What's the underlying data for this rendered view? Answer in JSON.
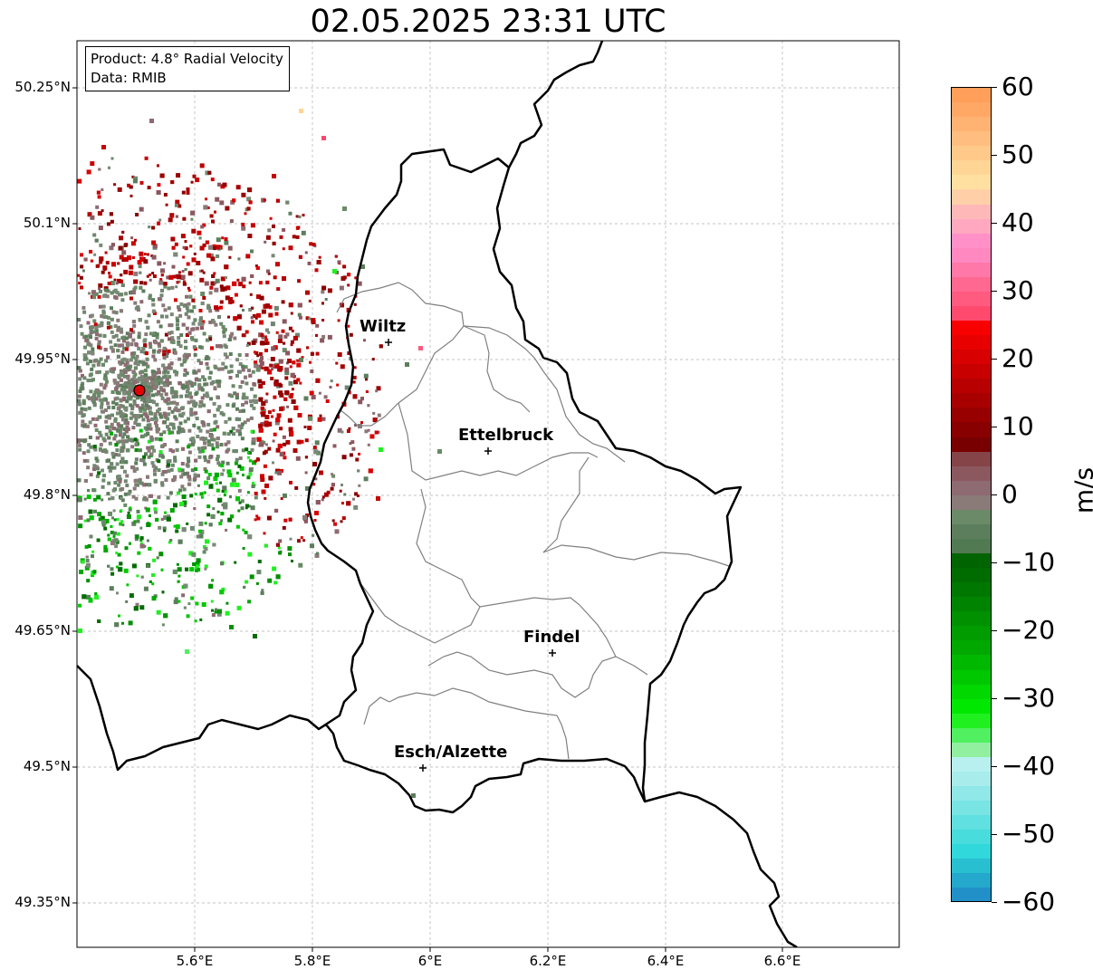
{
  "title": "02.05.2025 23:31 UTC",
  "info": {
    "product": "Product: 4.8° Radial Velocity",
    "source": "Data: RMIB"
  },
  "lon_ticks": [
    "5.6°E",
    "5.8°E",
    "6°E",
    "6.2°E",
    "6.4°E",
    "6.6°E"
  ],
  "lat_ticks": [
    "50.25°N",
    "50.1°N",
    "49.95°N",
    "49.8°N",
    "49.65°N",
    "49.5°N",
    "49.35°N"
  ],
  "cities": [
    {
      "name": "Wiltz"
    },
    {
      "name": "Ettelbruck"
    },
    {
      "name": "Findel"
    },
    {
      "name": "Esch/Alzette"
    }
  ],
  "colorbar": {
    "unit": "m/s",
    "ticks": [
      "60",
      "50",
      "40",
      "30",
      "20",
      "10",
      "0",
      "−10",
      "−20",
      "−30",
      "−40",
      "−50",
      "−60"
    ],
    "range": [
      -60,
      60
    ]
  },
  "colors": {
    "border_country": "#000000",
    "border_canton": "#808080",
    "radar_site": "#e00000"
  }
}
